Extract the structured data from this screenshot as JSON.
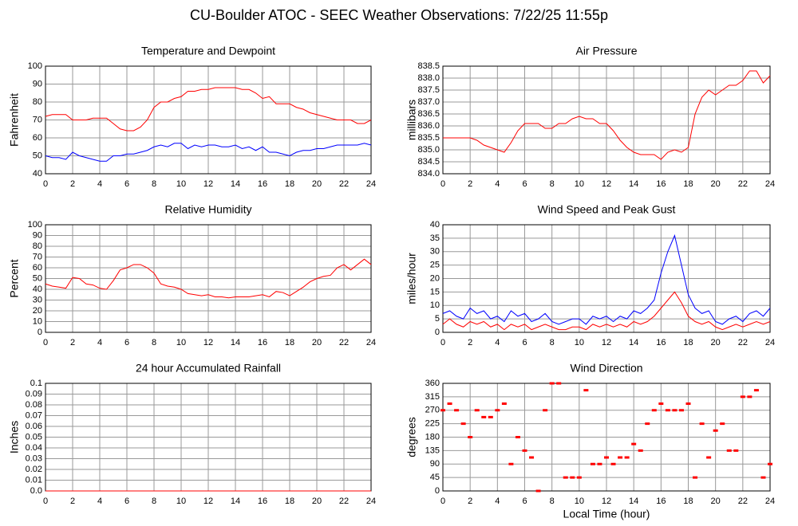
{
  "title": "CU-Boulder ATOC - SEEC Weather Observations: 7/22/25 11:55p",
  "chart_data": [
    {
      "type": "line",
      "title": "Temperature and Dewpoint",
      "ylabel": "Fahrenheit",
      "x": [
        0,
        0.5,
        1,
        1.5,
        2,
        2.5,
        3,
        3.5,
        4,
        4.5,
        5,
        5.5,
        6,
        6.5,
        7,
        7.5,
        8,
        8.5,
        9,
        9.5,
        10,
        10.5,
        11,
        11.5,
        12,
        12.5,
        13,
        13.5,
        14,
        14.5,
        15,
        15.5,
        16,
        16.5,
        17,
        17.5,
        18,
        18.5,
        19,
        19.5,
        20,
        20.5,
        21,
        21.5,
        22,
        22.5,
        23,
        23.5,
        24
      ],
      "series": [
        {
          "color": "#ff0000",
          "values": [
            72,
            73,
            73,
            73,
            70,
            70,
            70,
            71,
            71,
            71,
            68,
            65,
            64,
            64,
            66,
            70,
            77,
            80,
            80,
            82,
            83,
            86,
            86,
            87,
            87,
            88,
            88,
            88,
            88,
            87,
            87,
            85,
            82,
            83,
            79,
            79,
            79,
            77,
            76,
            74,
            73,
            72,
            71,
            70,
            70,
            70,
            68,
            68,
            70
          ]
        },
        {
          "color": "#0000ff",
          "values": [
            50,
            49,
            49,
            48,
            52,
            50,
            49,
            48,
            47,
            47,
            50,
            50,
            51,
            51,
            52,
            53,
            55,
            56,
            55,
            57,
            57,
            54,
            56,
            55,
            56,
            56,
            55,
            55,
            56,
            54,
            55,
            53,
            55,
            52,
            52,
            51,
            50,
            52,
            53,
            53,
            54,
            54,
            55,
            56,
            56,
            56,
            56,
            57,
            56
          ]
        }
      ],
      "xlim": [
        0,
        24
      ],
      "xticks": [
        0,
        2,
        4,
        6,
        8,
        10,
        12,
        14,
        16,
        18,
        20,
        22,
        24
      ],
      "ylim": [
        40,
        100
      ],
      "yticks": [
        40,
        50,
        60,
        70,
        80,
        90,
        100
      ],
      "grid": true
    },
    {
      "type": "line",
      "title": "Air Pressure",
      "ylabel": "millibars",
      "x": [
        0,
        0.5,
        1,
        1.5,
        2,
        2.5,
        3,
        3.5,
        4,
        4.5,
        5,
        5.5,
        6,
        6.5,
        7,
        7.5,
        8,
        8.5,
        9,
        9.5,
        10,
        10.5,
        11,
        11.5,
        12,
        12.5,
        13,
        13.5,
        14,
        14.5,
        15,
        15.5,
        16,
        16.5,
        17,
        17.5,
        18,
        18.5,
        19,
        19.5,
        20,
        20.5,
        21,
        21.5,
        22,
        22.5,
        23,
        23.5,
        24
      ],
      "series": [
        {
          "color": "#ff0000",
          "values": [
            835.5,
            835.5,
            835.5,
            835.5,
            835.5,
            835.4,
            835.2,
            835.1,
            835.0,
            834.9,
            835.3,
            835.8,
            836.1,
            836.1,
            836.1,
            835.9,
            835.9,
            836.1,
            836.1,
            836.3,
            836.4,
            836.3,
            836.3,
            836.1,
            836.1,
            835.8,
            835.4,
            835.1,
            834.9,
            834.8,
            834.8,
            834.8,
            834.6,
            834.9,
            835.0,
            834.9,
            835.1,
            836.5,
            837.2,
            837.5,
            837.3,
            837.5,
            837.7,
            837.7,
            837.9,
            838.3,
            838.3,
            837.8,
            838.1
          ]
        }
      ],
      "xlim": [
        0,
        24
      ],
      "xticks": [
        0,
        2,
        4,
        6,
        8,
        10,
        12,
        14,
        16,
        18,
        20,
        22,
        24
      ],
      "ylim": [
        834,
        838.5
      ],
      "yticks": [
        {
          "value": 834,
          "label": "834.0"
        },
        834.5,
        {
          "value": 835,
          "label": "835.0"
        },
        835.5,
        {
          "value": 836,
          "label": "836.0"
        },
        836.5,
        {
          "value": 837,
          "label": "837.0"
        },
        837.5,
        {
          "value": 838,
          "label": "838.0"
        },
        838.5
      ],
      "grid": true
    },
    {
      "type": "line",
      "title": "Relative Humidity",
      "ylabel": "Percent",
      "x": [
        0,
        0.5,
        1,
        1.5,
        2,
        2.5,
        3,
        3.5,
        4,
        4.5,
        5,
        5.5,
        6,
        6.5,
        7,
        7.5,
        8,
        8.5,
        9,
        9.5,
        10,
        10.5,
        11,
        11.5,
        12,
        12.5,
        13,
        13.5,
        14,
        14.5,
        15,
        15.5,
        16,
        16.5,
        17,
        17.5,
        18,
        18.5,
        19,
        19.5,
        20,
        20.5,
        21,
        21.5,
        22,
        22.5,
        23,
        23.5,
        24
      ],
      "series": [
        {
          "color": "#ff0000",
          "values": [
            45,
            43,
            42,
            41,
            51,
            50,
            45,
            44,
            41,
            40,
            48,
            58,
            60,
            63,
            63,
            60,
            55,
            45,
            43,
            42,
            40,
            36,
            35,
            34,
            35,
            33,
            33,
            32,
            33,
            33,
            33,
            34,
            35,
            33,
            38,
            37,
            34,
            38,
            42,
            47,
            50,
            52,
            53,
            60,
            63,
            58,
            63,
            68,
            63
          ]
        }
      ],
      "xlim": [
        0,
        24
      ],
      "xticks": [
        0,
        2,
        4,
        6,
        8,
        10,
        12,
        14,
        16,
        18,
        20,
        22,
        24
      ],
      "ylim": [
        0,
        100
      ],
      "yticks": [
        0,
        10,
        20,
        30,
        40,
        50,
        60,
        70,
        80,
        90,
        100
      ],
      "grid": true
    },
    {
      "type": "line",
      "title": "Wind Speed and Peak Gust",
      "ylabel": "miles/hour",
      "x": [
        0,
        0.5,
        1,
        1.5,
        2,
        2.5,
        3,
        3.5,
        4,
        4.5,
        5,
        5.5,
        6,
        6.5,
        7,
        7.5,
        8,
        8.5,
        9,
        9.5,
        10,
        10.5,
        11,
        11.5,
        12,
        12.5,
        13,
        13.5,
        14,
        14.5,
        15,
        15.5,
        16,
        16.5,
        17,
        17.5,
        18,
        18.5,
        19,
        19.5,
        20,
        20.5,
        21,
        21.5,
        22,
        22.5,
        23,
        23.5,
        24
      ],
      "series": [
        {
          "color": "#ff0000",
          "values": [
            3,
            5,
            3,
            2,
            4,
            3,
            4,
            2,
            3,
            1,
            3,
            2,
            3,
            1,
            2,
            3,
            2,
            1,
            1,
            2,
            2,
            1,
            3,
            2,
            3,
            2,
            3,
            2,
            4,
            3,
            4,
            6,
            9,
            12,
            15,
            11,
            6,
            4,
            3,
            4,
            2,
            1,
            2,
            3,
            2,
            3,
            4,
            3,
            4
          ]
        },
        {
          "color": "#0000ff",
          "values": [
            7,
            8,
            6,
            5,
            9,
            7,
            8,
            5,
            6,
            4,
            8,
            6,
            7,
            4,
            5,
            7,
            4,
            3,
            4,
            5,
            5,
            3,
            6,
            5,
            6,
            4,
            6,
            5,
            8,
            7,
            9,
            12,
            22,
            30,
            36,
            25,
            14,
            9,
            7,
            8,
            4,
            3,
            5,
            6,
            4,
            7,
            8,
            6,
            9
          ]
        }
      ],
      "xlim": [
        0,
        24
      ],
      "xticks": [
        0,
        2,
        4,
        6,
        8,
        10,
        12,
        14,
        16,
        18,
        20,
        22,
        24
      ],
      "ylim": [
        0,
        40
      ],
      "yticks": [
        0,
        5,
        10,
        15,
        20,
        25,
        30,
        35,
        40
      ],
      "grid": true
    },
    {
      "type": "line",
      "title": "24 hour Accumulated Rainfall",
      "ylabel": "Inches",
      "x": [
        0,
        24
      ],
      "series": [
        {
          "color": "#ff0000",
          "values": [
            0,
            0
          ]
        }
      ],
      "xlim": [
        0,
        24
      ],
      "xticks": [
        0,
        2,
        4,
        6,
        8,
        10,
        12,
        14,
        16,
        18,
        20,
        22,
        24
      ],
      "ylim": [
        0,
        0.1
      ],
      "yticks": [
        {
          "value": 0,
          "label": "0.0"
        },
        0.01,
        0.02,
        0.03,
        0.04,
        0.05,
        0.06,
        0.07,
        0.08,
        0.09,
        0.1
      ],
      "grid": true
    },
    {
      "type": "scatter",
      "title": "Wind Direction",
      "ylabel": "degrees",
      "xlabel": "Local Time (hour)",
      "x": [
        0,
        0.5,
        1,
        1.5,
        2,
        2.5,
        3,
        3.5,
        4,
        4.5,
        5,
        5.5,
        6,
        6.5,
        7,
        7.5,
        8,
        8.5,
        9,
        9.5,
        10,
        10.5,
        11,
        11.5,
        12,
        12.5,
        13,
        13.5,
        14,
        14.5,
        15,
        15.5,
        16,
        16.5,
        17,
        17.5,
        18,
        18.5,
        19,
        19.5,
        20,
        20.5,
        21,
        21.5,
        22,
        22.5,
        23,
        23.5,
        24
      ],
      "series": [
        {
          "color": "#ff0000",
          "values": [
            270,
            292,
            270,
            225,
            180,
            270,
            247,
            247,
            270,
            292,
            90,
            180,
            135,
            112,
            0,
            270,
            360,
            360,
            45,
            45,
            45,
            337,
            90,
            90,
            112,
            90,
            112,
            112,
            157,
            135,
            225,
            270,
            292,
            270,
            270,
            270,
            292,
            45,
            225,
            112,
            202,
            225,
            135,
            135,
            315,
            315,
            337,
            45,
            90
          ]
        }
      ],
      "xlim": [
        0,
        24
      ],
      "xticks": [
        0,
        2,
        4,
        6,
        8,
        10,
        12,
        14,
        16,
        18,
        20,
        22,
        24
      ],
      "ylim": [
        0,
        360
      ],
      "yticks": [
        0,
        45,
        90,
        135,
        180,
        225,
        270,
        315,
        360
      ],
      "grid": true
    }
  ]
}
